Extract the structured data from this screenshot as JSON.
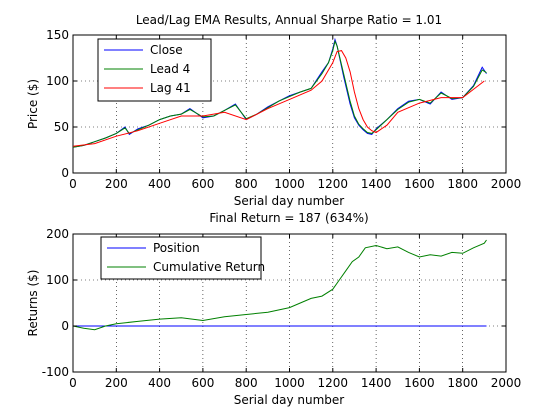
{
  "chart_data": [
    {
      "type": "line",
      "title": "Lead/Lag EMA Results, Annual Sharpe Ratio = 1.01",
      "xlabel": "Serial day number",
      "ylabel": "Price ($)",
      "xlim": [
        0,
        2000
      ],
      "ylim": [
        0,
        150
      ],
      "xticks": [
        0,
        200,
        400,
        600,
        800,
        1000,
        1200,
        1400,
        1600,
        1800,
        2000
      ],
      "yticks": [
        0,
        50,
        100,
        150
      ],
      "grid": "dotted",
      "legend_position": "top-left",
      "series": [
        {
          "name": "Close",
          "color": "#0000ff",
          "x": [
            0,
            50,
            100,
            150,
            200,
            240,
            260,
            300,
            350,
            400,
            450,
            500,
            540,
            600,
            650,
            700,
            750,
            800,
            850,
            900,
            950,
            1000,
            1050,
            1100,
            1150,
            1180,
            1200,
            1210,
            1220,
            1250,
            1280,
            1300,
            1320,
            1340,
            1360,
            1380,
            1400,
            1450,
            1500,
            1550,
            1600,
            1650,
            1700,
            1750,
            1800,
            1850,
            1890,
            1910
          ],
          "values": [
            28,
            30,
            34,
            38,
            43,
            50,
            42,
            48,
            52,
            58,
            62,
            64,
            70,
            60,
            62,
            68,
            75,
            58,
            64,
            72,
            78,
            84,
            88,
            92,
            110,
            120,
            135,
            145,
            138,
            105,
            75,
            60,
            52,
            47,
            43,
            42,
            48,
            58,
            70,
            78,
            80,
            75,
            88,
            80,
            82,
            95,
            115,
            108
          ]
        },
        {
          "name": "Lead 4",
          "color": "#008000",
          "x": [
            0,
            50,
            100,
            150,
            200,
            240,
            260,
            300,
            350,
            400,
            450,
            500,
            540,
            600,
            650,
            700,
            750,
            800,
            850,
            900,
            950,
            1000,
            1050,
            1100,
            1150,
            1180,
            1200,
            1210,
            1220,
            1250,
            1280,
            1300,
            1320,
            1340,
            1360,
            1380,
            1400,
            1450,
            1500,
            1550,
            1600,
            1650,
            1700,
            1750,
            1800,
            1850,
            1890,
            1910
          ],
          "values": [
            28,
            30,
            34,
            38,
            43,
            49,
            43,
            47,
            52,
            58,
            62,
            64,
            69,
            61,
            62,
            68,
            74,
            59,
            64,
            71,
            78,
            83,
            88,
            92,
            108,
            120,
            133,
            143,
            138,
            108,
            78,
            62,
            53,
            48,
            44,
            43,
            47,
            58,
            69,
            77,
            80,
            76,
            87,
            81,
            82,
            94,
            112,
            109
          ]
        },
        {
          "name": "Lag 41",
          "color": "#ff0000",
          "x": [
            0,
            100,
            200,
            300,
            400,
            500,
            600,
            700,
            800,
            900,
            1000,
            1100,
            1150,
            1200,
            1220,
            1240,
            1260,
            1280,
            1300,
            1320,
            1340,
            1360,
            1380,
            1400,
            1450,
            1500,
            1600,
            1700,
            1800,
            1900
          ],
          "values": [
            29,
            32,
            40,
            46,
            54,
            62,
            62,
            66,
            58,
            70,
            80,
            90,
            100,
            120,
            132,
            133,
            125,
            110,
            88,
            70,
            58,
            50,
            46,
            44,
            52,
            66,
            76,
            82,
            82,
            100
          ]
        }
      ]
    },
    {
      "type": "line",
      "title": "Final Return = 187 (634%)",
      "xlabel": "Serial day number",
      "ylabel": "Returns ($)",
      "xlim": [
        0,
        2000
      ],
      "ylim": [
        -100,
        200
      ],
      "xticks": [
        0,
        200,
        400,
        600,
        800,
        1000,
        1200,
        1400,
        1600,
        1800,
        2000
      ],
      "yticks": [
        -100,
        0,
        100,
        200
      ],
      "grid": "dotted",
      "legend_position": "top-left",
      "series": [
        {
          "name": "Position",
          "color": "#0000ff",
          "x": [
            0,
            1910
          ],
          "values": [
            0,
            0
          ]
        },
        {
          "name": "Cumulative Return",
          "color": "#008000",
          "x": [
            0,
            50,
            100,
            150,
            200,
            300,
            400,
            500,
            600,
            700,
            800,
            900,
            1000,
            1050,
            1100,
            1150,
            1200,
            1230,
            1260,
            1290,
            1320,
            1350,
            1400,
            1450,
            1500,
            1550,
            1600,
            1650,
            1700,
            1750,
            1800,
            1850,
            1900,
            1910
          ],
          "values": [
            0,
            -5,
            -8,
            0,
            5,
            10,
            15,
            18,
            12,
            20,
            25,
            30,
            40,
            50,
            60,
            65,
            80,
            100,
            120,
            140,
            150,
            170,
            175,
            168,
            172,
            160,
            150,
            155,
            152,
            160,
            158,
            170,
            180,
            187
          ]
        }
      ]
    }
  ]
}
